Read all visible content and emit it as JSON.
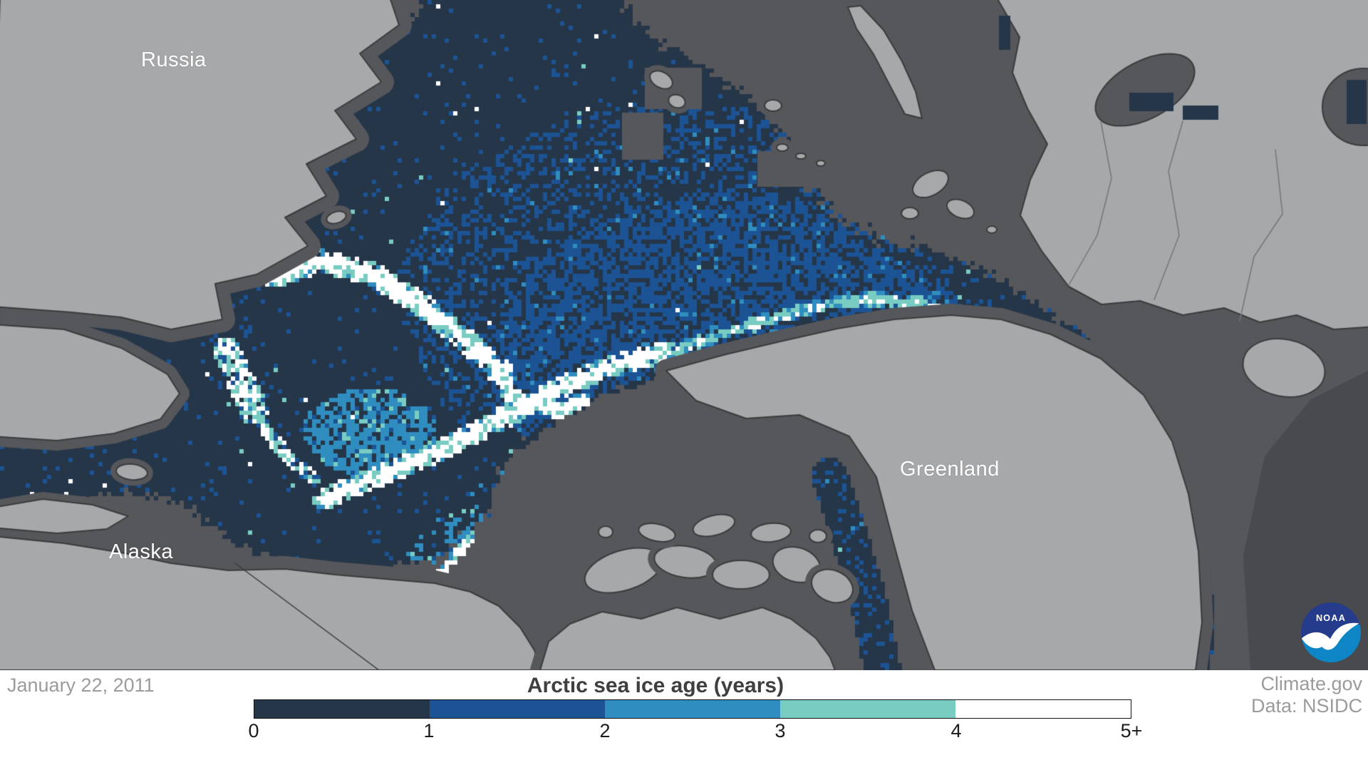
{
  "map": {
    "labels": [
      {
        "text": "Russia"
      },
      {
        "text": "Alaska"
      },
      {
        "text": "Greenland"
      }
    ],
    "colors": {
      "ocean": "#56575B",
      "ocean_dark": "#494A4E",
      "land": "#A7A8AA",
      "land_border": "#3A3B3D",
      "country_border": "#75767B",
      "label_text": "#FFFFFF"
    }
  },
  "legend": {
    "title": "Arctic sea ice age (years)",
    "ticks": [
      "0",
      "1",
      "2",
      "3",
      "4",
      "5+"
    ],
    "colors": [
      "#263649",
      "#1C5394",
      "#2F8DBF",
      "#79CCC2",
      "#FFFFFF"
    ],
    "title_color": "#3E3F41",
    "tick_color": "#1B1B1B"
  },
  "footer": {
    "date": "January 22, 2011",
    "credits": [
      "Climate.gov",
      "Data: NSIDC"
    ],
    "muted_text_color": "#9B9B9B",
    "background": "#FFFFFF"
  },
  "logo": {
    "text": "NOAA",
    "dark_blue": "#253C8C",
    "light_blue": "#0E86C6"
  }
}
